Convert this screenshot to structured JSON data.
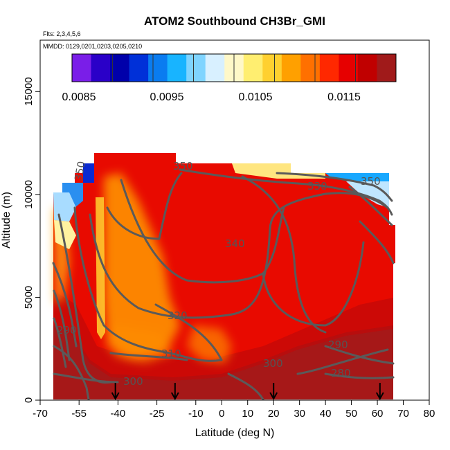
{
  "chart_data": {
    "type": "heatmap",
    "title": "ATOM2 Southbound CH3Br_GMI",
    "flights_note": "Flts: 2,3,4,5,6",
    "dates_note": "MMDD: 0129,0201,0203,0205,0210",
    "xlabel": "Latitude (deg N)",
    "ylabel": "Altitude (m)",
    "xlim": [
      -70,
      80
    ],
    "ylim": [
      0,
      17500
    ],
    "x_ticks": [
      "-70",
      "-55",
      "-40",
      "-25",
      "-10",
      "0",
      "10",
      "20",
      "30",
      "40",
      "50",
      "60",
      "70",
      "80"
    ],
    "y_ticks": [
      "0",
      "5000",
      "10000",
      "15000"
    ],
    "colorbar": {
      "min": 0.008,
      "max": 0.012,
      "tick_values": [
        0.0085,
        0.0095,
        0.0105,
        0.0115
      ],
      "tick_labels": [
        "0.0085",
        "0.0095",
        "0.0105",
        "0.0115"
      ],
      "colors": [
        "#7a1ee8",
        "#2a00c8",
        "#0000aa",
        "#0030d8",
        "#0a7cf0",
        "#18b4ff",
        "#7fd4ff",
        "#d8f0ff",
        "#fff8c8",
        "#ffee70",
        "#ffd030",
        "#ffa000",
        "#ff7000",
        "#ff2800",
        "#e60000",
        "#c00000",
        "#a01a1a"
      ]
    },
    "contour_levels": [
      "280",
      "290",
      "300",
      "310",
      "320",
      "330",
      "340",
      "350"
    ],
    "flight_markers_lat": [
      -41,
      -18,
      20,
      61
    ]
  }
}
